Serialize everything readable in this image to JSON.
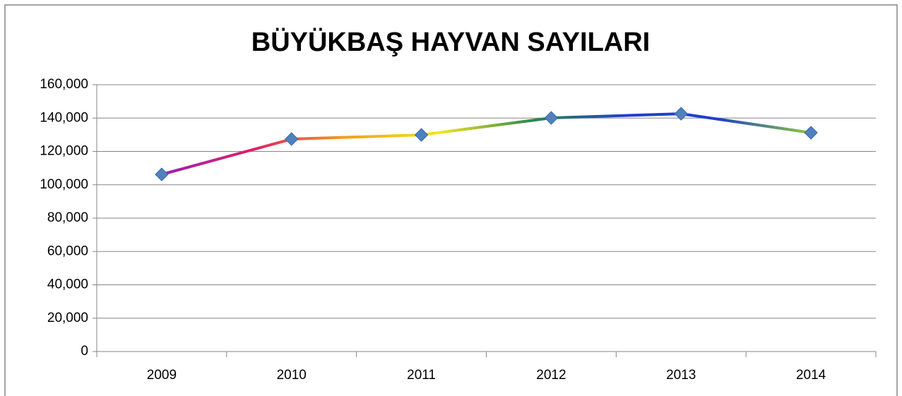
{
  "chart_data": {
    "type": "line",
    "title": "BÜYÜKBAŞ HAYVAN SAYILARI",
    "categories": [
      "2009",
      "2010",
      "2011",
      "2012",
      "2013",
      "2014"
    ],
    "values": [
      106200,
      127400,
      129900,
      140100,
      142600,
      131200
    ],
    "line_gradient": [
      "#9a1fb0",
      "#e0206a",
      "#f4a01a",
      "#f4e61a",
      "#2a8a4a",
      "#1f3fcc",
      "#1f3fcc",
      "#8fc93a"
    ],
    "marker_color": "#4f81bd",
    "ylim": [
      0,
      160000
    ],
    "yticks": [
      0,
      {
        "value": 20000,
        "label": "20,000"
      },
      {
        "value": 40000,
        "label": "40,000"
      },
      {
        "value": 60000,
        "label": "60,000"
      },
      {
        "value": 80000,
        "label": "80,000"
      },
      {
        "value": 100000,
        "label": "100,000"
      },
      {
        "value": 120000,
        "label": "120,000"
      },
      {
        "value": 140000,
        "label": "140,000"
      },
      {
        "value": 160000,
        "label": "160,000"
      }
    ],
    "grid": true
  }
}
